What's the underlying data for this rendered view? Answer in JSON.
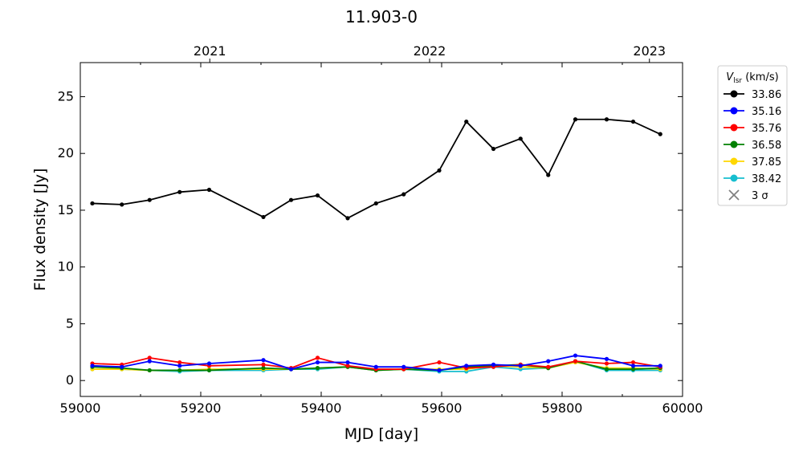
{
  "chart_data": {
    "type": "line",
    "title": "11.903-0",
    "xlabel": "MJD [day]",
    "ylabel": "Flux density [Jy]",
    "xlim": [
      59000,
      60000
    ],
    "ylim": [
      -1.4,
      28
    ],
    "xticks": [
      "59000",
      "59200",
      "59400",
      "59600",
      "59800",
      "60000"
    ],
    "yticks": [
      "0",
      "5",
      "10",
      "15",
      "20",
      "25"
    ],
    "top_axis_years": [
      {
        "label": "2021",
        "mjd": 59215
      },
      {
        "label": "2022",
        "mjd": 59580
      },
      {
        "label": "2023",
        "mjd": 59945
      }
    ],
    "legend": {
      "title_main": "V",
      "title_sub": "lsr",
      "title_unit": " (km/s)",
      "placement": "outside-right"
    },
    "x": [
      59020,
      59069,
      59115,
      59165,
      59214,
      59304,
      59350,
      59394,
      59444,
      59491,
      59537,
      59596,
      59641,
      59686,
      59731,
      59777,
      59822,
      59874,
      59918,
      59963
    ],
    "series": [
      {
        "name": "33.86",
        "color": "#000000",
        "values": [
          15.6,
          15.5,
          15.9,
          16.6,
          16.8,
          14.4,
          15.9,
          16.3,
          14.3,
          15.6,
          16.4,
          18.5,
          22.8,
          20.4,
          21.3,
          18.1,
          23.0,
          23.0,
          22.8,
          21.7
        ]
      },
      {
        "name": "35.16",
        "color": "#0000ff",
        "values": [
          1.3,
          1.2,
          1.7,
          1.3,
          1.5,
          1.8,
          1.0,
          1.6,
          1.6,
          1.2,
          1.2,
          0.9,
          1.3,
          1.4,
          1.3,
          1.7,
          2.2,
          1.9,
          1.3,
          1.3
        ]
      },
      {
        "name": "35.76",
        "color": "#ff0000",
        "values": [
          1.5,
          1.4,
          2.0,
          1.6,
          1.3,
          1.4,
          1.1,
          2.0,
          1.3,
          1.0,
          1.0,
          1.6,
          1.1,
          1.2,
          1.4,
          1.2,
          1.7,
          1.5,
          1.6,
          1.2
        ]
      },
      {
        "name": "36.58",
        "color": "#008000",
        "values": [
          1.2,
          1.1,
          0.9,
          0.9,
          0.9,
          1.1,
          1.0,
          1.1,
          1.2,
          0.9,
          1.0,
          0.9,
          1.2,
          1.3,
          1.4,
          1.1,
          1.7,
          1.0,
          1.0,
          1.1
        ]
      },
      {
        "name": "37.85",
        "color": "#ffd700",
        "values": [
          1.0,
          1.0,
          0.9,
          0.9,
          1.0,
          1.0,
          1.0,
          1.1,
          1.2,
          0.9,
          1.0,
          1.0,
          1.0,
          1.3,
          1.2,
          1.1,
          1.6,
          1.1,
          1.1,
          1.0
        ]
      },
      {
        "name": "38.42",
        "color": "#17becf",
        "values": [
          1.0,
          1.0,
          0.9,
          0.8,
          0.9,
          0.9,
          1.0,
          1.0,
          1.2,
          0.9,
          1.0,
          0.8,
          0.8,
          1.2,
          1.0,
          1.1,
          1.7,
          0.9,
          0.9,
          0.9
        ]
      }
    ],
    "sigma_label": "3 σ",
    "sigma_color": "#808080",
    "grid": false
  }
}
